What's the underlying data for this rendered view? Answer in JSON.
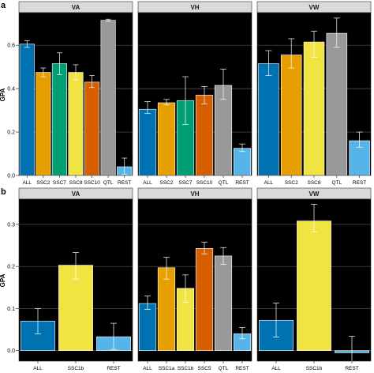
{
  "chart_data": [
    {
      "type": "bar",
      "panel_letter": "a",
      "ylabel": "GPA",
      "ylim": [
        0,
        0.75
      ],
      "yticks": [
        "0.0",
        "0.2",
        "0.4",
        "0.6"
      ],
      "ytick_values": [
        0,
        0.2,
        0.4,
        0.6
      ],
      "grid": true,
      "facets": [
        {
          "title": "VA",
          "bars": [
            {
              "category": "ALL",
              "value": 0.605,
              "error_low": 0.59,
              "error_high": 0.62,
              "color": "#0072B2"
            },
            {
              "category": "SSC2",
              "value": 0.475,
              "error_low": 0.455,
              "error_high": 0.495,
              "color": "#E69F00"
            },
            {
              "category": "SSC7",
              "value": 0.515,
              "error_low": 0.465,
              "error_high": 0.565,
              "color": "#009E73"
            },
            {
              "category": "SSC8",
              "value": 0.475,
              "error_low": 0.44,
              "error_high": 0.51,
              "color": "#F0E442"
            },
            {
              "category": "SSC10",
              "value": 0.43,
              "error_low": 0.405,
              "error_high": 0.46,
              "color": "#D55E00"
            },
            {
              "category": "QTL",
              "value": 0.715,
              "error_low": 0.71,
              "error_high": 0.72,
              "color": "#999999"
            },
            {
              "category": "REST",
              "value": 0.04,
              "error_low": 0.005,
              "error_high": 0.08,
              "color": "#56B4E9"
            }
          ]
        },
        {
          "title": "VH",
          "bars": [
            {
              "category": "ALL",
              "value": 0.305,
              "error_low": 0.285,
              "error_high": 0.34,
              "color": "#0072B2"
            },
            {
              "category": "SSC2",
              "value": 0.335,
              "error_low": 0.325,
              "error_high": 0.35,
              "color": "#E69F00"
            },
            {
              "category": "SSC7",
              "value": 0.345,
              "error_low": 0.235,
              "error_high": 0.455,
              "color": "#009E73"
            },
            {
              "category": "SSC10",
              "value": 0.37,
              "error_low": 0.33,
              "error_high": 0.41,
              "color": "#D55E00"
            },
            {
              "category": "QTL",
              "value": 0.415,
              "error_low": 0.35,
              "error_high": 0.49,
              "color": "#999999"
            },
            {
              "category": "REST",
              "value": 0.125,
              "error_low": 0.11,
              "error_high": 0.145,
              "color": "#56B4E9"
            }
          ]
        },
        {
          "title": "VW",
          "bars": [
            {
              "category": "ALL",
              "value": 0.515,
              "error_low": 0.46,
              "error_high": 0.575,
              "color": "#0072B2"
            },
            {
              "category": "SSC2",
              "value": 0.555,
              "error_low": 0.495,
              "error_high": 0.63,
              "color": "#E69F00"
            },
            {
              "category": "SSC8",
              "value": 0.615,
              "error_low": 0.545,
              "error_high": 0.665,
              "color": "#F0E442"
            },
            {
              "category": "QTL",
              "value": 0.655,
              "error_low": 0.59,
              "error_high": 0.725,
              "color": "#999999"
            },
            {
              "category": "REST",
              "value": 0.16,
              "error_low": 0.13,
              "error_high": 0.2,
              "color": "#56B4E9"
            }
          ]
        }
      ]
    },
    {
      "type": "bar",
      "panel_letter": "b",
      "ylabel": "GPA",
      "ylim": [
        -0.025,
        0.36
      ],
      "yticks": [
        "0.0",
        "0.1",
        "0.2",
        "0.3"
      ],
      "ytick_values": [
        0,
        0.1,
        0.2,
        0.3
      ],
      "grid": true,
      "facets": [
        {
          "title": "VA",
          "bars": [
            {
              "category": "ALL",
              "value": 0.07,
              "error_low": 0.04,
              "error_high": 0.1,
              "color": "#0072B2"
            },
            {
              "category": "SSC1b",
              "value": 0.203,
              "error_low": 0.17,
              "error_high": 0.233,
              "color": "#F0E442"
            },
            {
              "category": "REST",
              "value": 0.033,
              "error_low": 0.003,
              "error_high": 0.065,
              "color": "#56B4E9"
            }
          ]
        },
        {
          "title": "VH",
          "bars": [
            {
              "category": "ALL",
              "value": 0.112,
              "error_low": 0.098,
              "error_high": 0.13,
              "color": "#0072B2"
            },
            {
              "category": "SSC1a",
              "value": 0.197,
              "error_low": 0.17,
              "error_high": 0.222,
              "color": "#E69F00"
            },
            {
              "category": "SSC1b",
              "value": 0.148,
              "error_low": 0.115,
              "error_high": 0.18,
              "color": "#F0E442"
            },
            {
              "category": "SSC5",
              "value": 0.243,
              "error_low": 0.23,
              "error_high": 0.258,
              "color": "#D55E00"
            },
            {
              "category": "QTL",
              "value": 0.225,
              "error_low": 0.205,
              "error_high": 0.245,
              "color": "#999999"
            },
            {
              "category": "REST",
              "value": 0.04,
              "error_low": 0.028,
              "error_high": 0.055,
              "color": "#56B4E9"
            }
          ]
        },
        {
          "title": "VW",
          "bars": [
            {
              "category": "ALL",
              "value": 0.072,
              "error_low": 0.032,
              "error_high": 0.113,
              "color": "#0072B2"
            },
            {
              "category": "SSC1b",
              "value": 0.308,
              "error_low": 0.282,
              "error_high": 0.348,
              "color": "#F0E442"
            },
            {
              "category": "REST",
              "value": -0.005,
              "error_low": -0.03,
              "error_high": 0.034,
              "color": "#56B4E9"
            }
          ]
        }
      ]
    }
  ]
}
